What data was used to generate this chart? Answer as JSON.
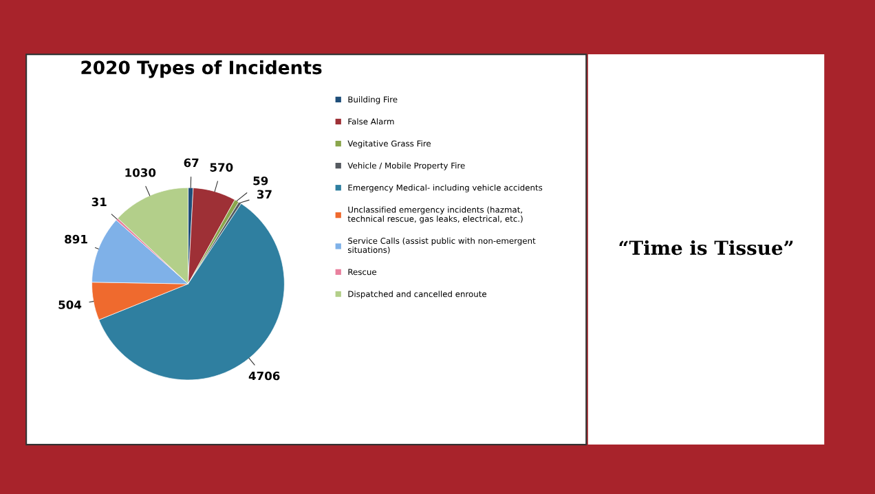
{
  "chart_data": {
    "type": "pie",
    "title": "2020 Types of Incidents",
    "categories": [
      "Building Fire",
      "False Alarm",
      "Vegitative Grass Fire",
      "Vehicle / Mobile Property Fire",
      "Emergency Medical- including vehicle accidents",
      "Unclassified emergency incidents (hazmat, technical rescue, gas leaks, electrical, etc.)",
      "Service Calls (assist public with non-emergent situations)",
      "Rescue",
      "Dispatched and cancelled enroute"
    ],
    "values": [
      67,
      570,
      59,
      37,
      4706,
      504,
      891,
      31,
      1030
    ],
    "colors": [
      "#1f4e79",
      "#9e3036",
      "#8aa64c",
      "#555a60",
      "#2f7fa0",
      "#ef6a2e",
      "#7fb1e8",
      "#e9819e",
      "#b3cf8a"
    ],
    "data_labels": true,
    "legend": "right",
    "annotations": [
      "“Time is Tissue”"
    ]
  }
}
